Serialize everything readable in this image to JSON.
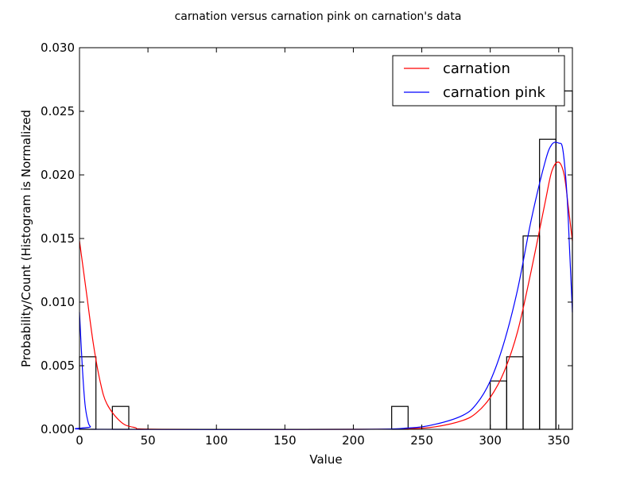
{
  "chart_data": {
    "type": "histogram",
    "title": "carnation versus carnation pink on carnation's data",
    "xlabel": "Value",
    "ylabel": "Probability/Count (Histogram is Normalized",
    "xlim": [
      0,
      360
    ],
    "ylim": [
      0,
      0.03
    ],
    "x_ticks": [
      "0",
      "50",
      "100",
      "150",
      "200",
      "250",
      "300",
      "350"
    ],
    "y_ticks": [
      "0.000",
      "0.005",
      "0.010",
      "0.015",
      "0.020",
      "0.025",
      "0.030"
    ],
    "legend_position": "top-right",
    "grid": false,
    "histogram": {
      "bin_edges": [
        0,
        12,
        24,
        36,
        228,
        240,
        300,
        312,
        324,
        336,
        348,
        360
      ],
      "bins": [
        {
          "x0": 0,
          "x1": 12,
          "density": 0.0057
        },
        {
          "x0": 24,
          "x1": 36,
          "density": 0.0018
        },
        {
          "x0": 228,
          "x1": 240,
          "density": 0.0018
        },
        {
          "x0": 300,
          "x1": 312,
          "density": 0.0038
        },
        {
          "x0": 312,
          "x1": 324,
          "density": 0.0057
        },
        {
          "x0": 324,
          "x1": 336,
          "density": 0.0152
        },
        {
          "x0": 336,
          "x1": 348,
          "density": 0.0228
        },
        {
          "x0": 348,
          "x1": 360,
          "density": 0.0266
        }
      ]
    },
    "series": [
      {
        "name": "carnation",
        "color": "#ff0000",
        "points": [
          [
            0,
            0.0148
          ],
          [
            5,
            0.0108
          ],
          [
            10,
            0.0068
          ],
          [
            15,
            0.0038
          ],
          [
            20,
            0.002
          ],
          [
            30,
            0.0006
          ],
          [
            40,
            0.00015
          ],
          [
            60,
            0.0
          ],
          [
            200,
            0.0
          ],
          [
            240,
            5e-05
          ],
          [
            260,
            0.0002
          ],
          [
            280,
            0.0007
          ],
          [
            290,
            0.0013
          ],
          [
            300,
            0.0025
          ],
          [
            310,
            0.0045
          ],
          [
            320,
            0.0077
          ],
          [
            330,
            0.0125
          ],
          [
            340,
            0.0178
          ],
          [
            345,
            0.0203
          ],
          [
            350,
            0.021
          ],
          [
            354,
            0.02
          ],
          [
            357,
            0.0175
          ],
          [
            360,
            0.0148
          ]
        ]
      },
      {
        "name": "carnation pink",
        "color": "#0000ff",
        "points": [
          [
            0,
            0.0092
          ],
          [
            2,
            0.005
          ],
          [
            4,
            0.002
          ],
          [
            6,
            0.0007
          ],
          [
            8,
            0.0002
          ],
          [
            12,
            0.0
          ],
          [
            200,
            0.0
          ],
          [
            240,
            0.0001
          ],
          [
            260,
            0.0004
          ],
          [
            280,
            0.0011
          ],
          [
            290,
            0.002
          ],
          [
            300,
            0.0038
          ],
          [
            310,
            0.0068
          ],
          [
            320,
            0.011
          ],
          [
            330,
            0.0165
          ],
          [
            340,
            0.021
          ],
          [
            345,
            0.0224
          ],
          [
            350,
            0.0225
          ],
          [
            353,
            0.022
          ],
          [
            356,
            0.0185
          ],
          [
            358,
            0.014
          ],
          [
            360,
            0.0092
          ]
        ]
      }
    ]
  },
  "colors": {
    "axis": "#000000",
    "hist_edge": "#000000"
  }
}
